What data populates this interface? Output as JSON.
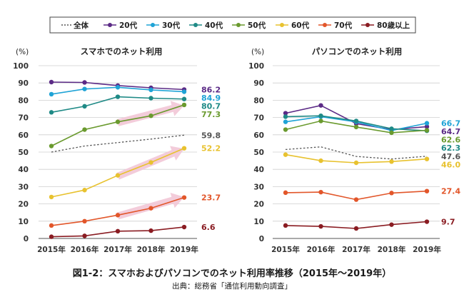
{
  "legend_labels": [
    "全体",
    "20代",
    "30代",
    "40代",
    "50代",
    "60代",
    "70代",
    "80歳以上"
  ],
  "colors": {
    "全体": "#555555",
    "20代": "#5b2a86",
    "30代": "#1fa3d6",
    "40代": "#1f8a86",
    "50代": "#6a9a2e",
    "60代": "#e8c22f",
    "70代": "#e2562a",
    "80歳以上": "#8a1c22",
    "arrow": "#f2c7d6"
  },
  "caption": "図1-2：スマホおよびパソコンでのネット利用率推移（2015年～2019年）",
  "source": "出典：総務省「通信利用動向調査」",
  "chart_data": [
    {
      "type": "line",
      "title": "スマホでのネット利用",
      "ylabel": "(%)",
      "ylim": [
        0,
        100
      ],
      "yticks": [
        0,
        10,
        20,
        30,
        40,
        50,
        60,
        70,
        80,
        90,
        100
      ],
      "categories": [
        "2015年",
        "2016年",
        "2017年",
        "2018年",
        "2019年"
      ],
      "grid": true,
      "series": [
        {
          "name": "全体",
          "values": [
            50,
            53.5,
            55.5,
            57.5,
            59.8
          ],
          "end_label": "59.8",
          "style": "dotted"
        },
        {
          "name": "20代",
          "values": [
            90.5,
            90.3,
            88.5,
            87.2,
            86.2
          ],
          "end_label": "86.2"
        },
        {
          "name": "30代",
          "values": [
            83.5,
            86.5,
            87.5,
            86,
            84.9
          ],
          "end_label": "84.9"
        },
        {
          "name": "40代",
          "values": [
            73,
            76.5,
            82,
            81.2,
            80.7
          ],
          "end_label": "80.7"
        },
        {
          "name": "50代",
          "values": [
            53.5,
            63,
            67.5,
            71,
            77.3
          ],
          "end_label": "77.3"
        },
        {
          "name": "60代",
          "values": [
            24,
            28,
            36.5,
            44,
            52.2
          ],
          "end_label": "52.2"
        },
        {
          "name": "70代",
          "values": [
            7.5,
            10,
            13.5,
            17.5,
            23.7
          ],
          "end_label": "23.7"
        },
        {
          "name": "80歳以上",
          "values": [
            1,
            1.5,
            4.2,
            4.5,
            6.6
          ],
          "end_label": "6.6"
        }
      ]
    },
    {
      "type": "line",
      "title": "パソコンでのネット利用",
      "ylabel": "(%)",
      "ylim": [
        0,
        100
      ],
      "yticks": [
        0,
        10,
        20,
        30,
        40,
        50,
        60,
        70,
        80,
        90,
        100
      ],
      "categories": [
        "2015年",
        "2016年",
        "2017年",
        "2018年",
        "2019年"
      ],
      "grid": true,
      "series": [
        {
          "name": "全体",
          "values": [
            51.5,
            53,
            47.5,
            46,
            47.6
          ],
          "end_label": "47.6",
          "style": "dotted"
        },
        {
          "name": "20代",
          "values": [
            72.5,
            77,
            66.5,
            63,
            64.7
          ],
          "end_label": "64.7"
        },
        {
          "name": "30代",
          "values": [
            67.5,
            70.5,
            67.5,
            62.5,
            66.7
          ],
          "end_label": "66.7"
        },
        {
          "name": "40代",
          "values": [
            70.5,
            71,
            68,
            63.5,
            62.3
          ],
          "end_label": "62.3"
        },
        {
          "name": "50代",
          "values": [
            63,
            68,
            64.5,
            61.2,
            62.6
          ],
          "end_label": "62.6"
        },
        {
          "name": "60代",
          "values": [
            48.5,
            45,
            43.8,
            44.5,
            46
          ],
          "end_label": "46.0"
        },
        {
          "name": "70代",
          "values": [
            26.5,
            26.8,
            22.5,
            26.3,
            27.4
          ],
          "end_label": "27.4"
        },
        {
          "name": "80歳以上",
          "values": [
            7.5,
            7,
            5.8,
            8,
            9.7
          ],
          "end_label": "9.7"
        }
      ]
    }
  ]
}
